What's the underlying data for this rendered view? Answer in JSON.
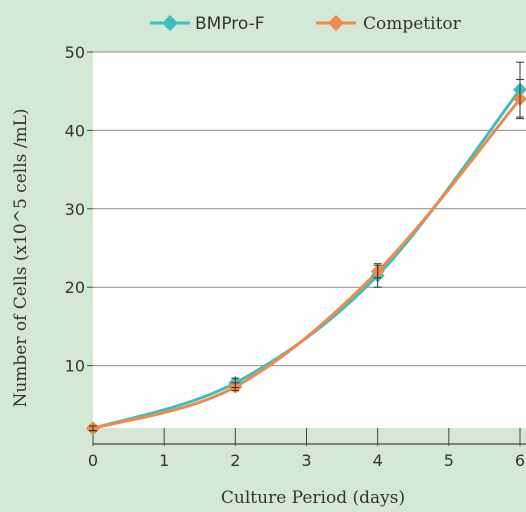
{
  "chart_data": {
    "type": "line",
    "title": "",
    "xlabel": "Culture Period (days)",
    "ylabel": "Number of Cells (x10^5 cells /mL)",
    "xlim": [
      0,
      6
    ],
    "ylim": [
      0,
      50
    ],
    "x_ticks": [
      "0",
      "1",
      "2",
      "3",
      "4",
      "5",
      "6"
    ],
    "y_ticks": [
      "10",
      "20",
      "30",
      "40",
      "50"
    ],
    "grid": "horizontal",
    "legend_position": "top",
    "series": [
      {
        "name": "BMPro-F",
        "color": "#3dbfbf",
        "x": [
          0,
          2,
          4,
          6
        ],
        "y": [
          2.0,
          7.8,
          21.5,
          45.2
        ],
        "error": [
          0.3,
          0.6,
          1.5,
          3.5
        ]
      },
      {
        "name": "Competitor",
        "color": "#f08a4b",
        "x": [
          0,
          2,
          4,
          6
        ],
        "y": [
          2.0,
          7.3,
          22.0,
          44.0
        ],
        "error": [
          0.3,
          0.5,
          0.8,
          2.5
        ]
      }
    ]
  }
}
